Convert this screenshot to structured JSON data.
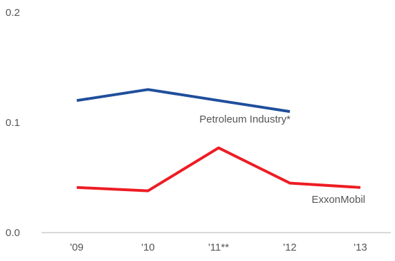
{
  "chart_data": {
    "type": "line",
    "title": "",
    "xlabel": "",
    "ylabel": "",
    "categories": [
      "'09",
      "'10",
      "'11**",
      "'12",
      "'13"
    ],
    "ylim": [
      0.0,
      0.2
    ],
    "yticks": [
      "0.0",
      "0.1",
      "0.2"
    ],
    "grid": false,
    "legend": "none",
    "series": [
      {
        "name": "Petroleum Industry*",
        "color": "#1f4e9c",
        "values": [
          0.12,
          0.13,
          0.12,
          0.11,
          null
        ]
      },
      {
        "name": "ExxonMobil",
        "color": "#ee1c24",
        "values": [
          0.041,
          0.038,
          0.077,
          0.045,
          0.041
        ]
      }
    ]
  }
}
